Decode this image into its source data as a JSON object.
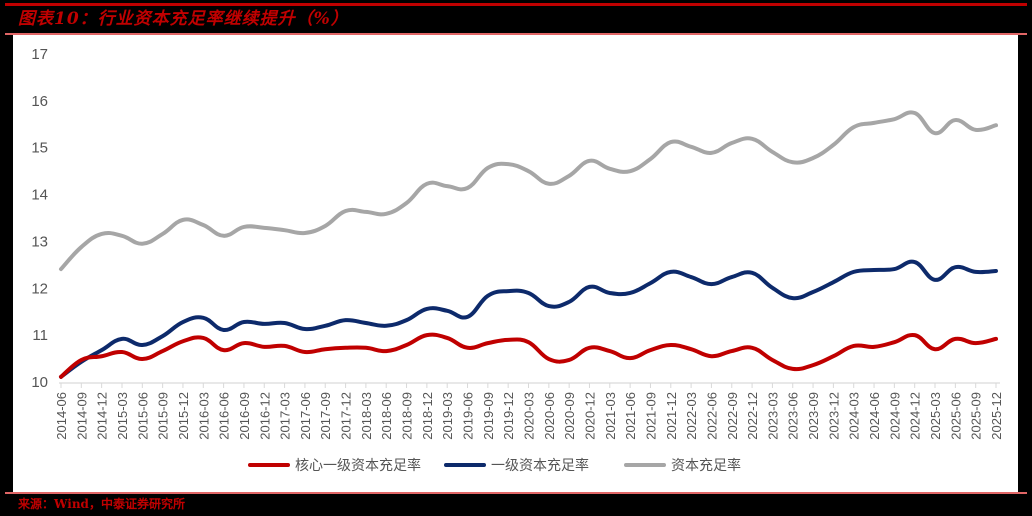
{
  "title": "图表10：行业资本充足率继续提升（%）",
  "source": "来源：Wind，中泰证券研究所",
  "colors": {
    "frame_red": "#c00000",
    "core_tier1": "#c00000",
    "tier1": "#0d2a6b",
    "total": "#a6a6a6",
    "axis": "#d9d9d9",
    "tick_text": "#555555"
  },
  "chart_data": {
    "type": "line",
    "title": "图表10：行业资本充足率继续提升（%）",
    "xlabel": "",
    "ylabel": "",
    "ylim": [
      10,
      17
    ],
    "yticks": [
      10,
      11,
      12,
      13,
      14,
      15,
      16,
      17
    ],
    "grid": false,
    "legend_position": "bottom",
    "categories": [
      "2014-06",
      "2014-09",
      "2014-12",
      "2015-03",
      "2015-06",
      "2015-09",
      "2015-12",
      "2016-03",
      "2016-06",
      "2016-09",
      "2016-12",
      "2017-03",
      "2017-06",
      "2017-09",
      "2017-12",
      "2018-03",
      "2018-06",
      "2018-09",
      "2018-12",
      "2019-03",
      "2019-06",
      "2019-09",
      "2019-12",
      "2020-03",
      "2020-06",
      "2020-09",
      "2020-12",
      "2021-03",
      "2021-06",
      "2021-09",
      "2021-12",
      "2022-03",
      "2022-06",
      "2022-09",
      "2022-12",
      "2023-03",
      "2023-06",
      "2023-09",
      "2023-12",
      "2024-03",
      "2024-06",
      "2024-09",
      "2024-12",
      "2025-03",
      "2025-06",
      "2025-09",
      "2025-12"
    ],
    "series": [
      {
        "name": "核心一级资本充足率",
        "color": "#c00000",
        "values": [
          10.11,
          10.47,
          10.55,
          10.64,
          10.49,
          10.66,
          10.87,
          10.94,
          10.68,
          10.83,
          10.75,
          10.77,
          10.64,
          10.7,
          10.73,
          10.73,
          10.66,
          10.79,
          11.0,
          10.94,
          10.73,
          10.83,
          10.9,
          10.85,
          10.49,
          10.47,
          10.73,
          10.66,
          10.51,
          10.68,
          10.79,
          10.7,
          10.55,
          10.66,
          10.73,
          10.47,
          10.28,
          10.36,
          10.55,
          10.77,
          10.75,
          10.85,
          11.0,
          10.7,
          10.92,
          10.83,
          10.92
        ]
      },
      {
        "name": "一级资本充足率",
        "color": "#0d2a6b",
        "values": [
          10.11,
          10.43,
          10.68,
          10.92,
          10.79,
          10.98,
          11.28,
          11.37,
          11.11,
          11.28,
          11.24,
          11.26,
          11.13,
          11.2,
          11.32,
          11.26,
          11.2,
          11.32,
          11.56,
          11.52,
          11.39,
          11.84,
          11.94,
          11.9,
          11.62,
          11.71,
          12.03,
          11.9,
          11.9,
          12.11,
          12.35,
          12.24,
          12.09,
          12.24,
          12.33,
          12.01,
          11.79,
          11.92,
          12.13,
          12.35,
          12.39,
          12.41,
          12.56,
          12.18,
          12.45,
          12.35,
          12.37
        ]
      },
      {
        "name": "资本充足率",
        "color": "#a6a6a6",
        "values": [
          12.41,
          12.88,
          13.16,
          13.12,
          12.95,
          13.16,
          13.46,
          13.35,
          13.12,
          13.31,
          13.29,
          13.24,
          13.18,
          13.33,
          13.65,
          13.63,
          13.59,
          13.82,
          14.23,
          14.18,
          14.14,
          14.57,
          14.65,
          14.5,
          14.23,
          14.4,
          14.72,
          14.55,
          14.5,
          14.76,
          15.12,
          15.02,
          14.89,
          15.1,
          15.19,
          14.91,
          14.69,
          14.78,
          15.06,
          15.44,
          15.53,
          15.61,
          15.74,
          15.31,
          15.59,
          15.38,
          15.48
        ]
      }
    ]
  }
}
